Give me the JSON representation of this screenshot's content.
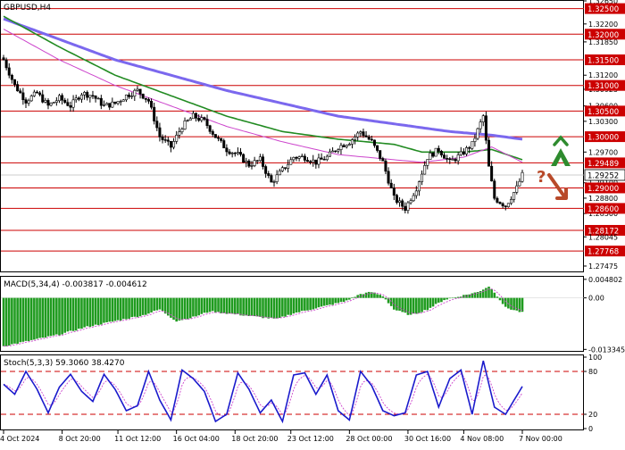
{
  "chart_data": [
    {
      "type": "candlestick",
      "title": "GBPUSD,H4",
      "y_axis_ticks": [
        "1.32650",
        "1.32500",
        "1.32200",
        "1.31850",
        "1.31500",
        "1.31200",
        "1.30925",
        "1.30600",
        "1.30300",
        "1.30000",
        "1.29700",
        "1.29252",
        "1.29100",
        "1.28800",
        "1.28500",
        "1.28172",
        "1.28045",
        "1.27768",
        "1.27475"
      ],
      "ylim": [
        1.2737,
        1.3265
      ],
      "horizontal_levels": [
        {
          "value": 1.325,
          "label": "1.32500"
        },
        {
          "value": 1.32,
          "label": "1.32000"
        },
        {
          "value": 1.315,
          "label": "1.31500"
        },
        {
          "value": 1.31,
          "label": "1.31000"
        },
        {
          "value": 1.305,
          "label": "1.30500"
        },
        {
          "value": 1.3,
          "label": "1.30000"
        },
        {
          "value": 1.29489,
          "label": "1.29489"
        },
        {
          "value": 1.29,
          "label": "1.29000"
        },
        {
          "value": 1.286,
          "label": "1.28600"
        },
        {
          "value": 1.28172,
          "label": "1.28172"
        },
        {
          "value": 1.27768,
          "label": "1.27768"
        }
      ],
      "current_price": {
        "value": 1.29252,
        "label": "1.29252"
      },
      "x_axis_ticks": [
        "4 Oct 2024",
        "8 Oct 20:00",
        "11 Oct 12:00",
        "16 Oct 04:00",
        "18 Oct 20:00",
        "23 Oct 12:00",
        "28 Oct 00:00",
        "30 Oct 16:00",
        "4 Nov 08:00",
        "7 Nov 00:00"
      ],
      "close_waypoints": [
        [
          0,
          1.315
        ],
        [
          4,
          1.31
        ],
        [
          8,
          1.307
        ],
        [
          12,
          1.3085
        ],
        [
          16,
          1.306
        ],
        [
          20,
          1.3075
        ],
        [
          24,
          1.306
        ],
        [
          28,
          1.3085
        ],
        [
          32,
          1.308
        ],
        [
          36,
          1.306
        ],
        [
          40,
          1.3065
        ],
        [
          44,
          1.308
        ],
        [
          48,
          1.309
        ],
        [
          52,
          1.307
        ],
        [
          56,
          1.3
        ],
        [
          60,
          1.298
        ],
        [
          64,
          1.302
        ],
        [
          68,
          1.304
        ],
        [
          72,
          1.303
        ],
        [
          76,
          1.3
        ],
        [
          80,
          1.2975
        ],
        [
          84,
          1.2965
        ],
        [
          88,
          1.2945
        ],
        [
          92,
          1.2955
        ],
        [
          96,
          1.291
        ],
        [
          100,
          1.2935
        ],
        [
          104,
          1.296
        ],
        [
          108,
          1.296
        ],
        [
          112,
          1.295
        ],
        [
          116,
          1.296
        ],
        [
          120,
          1.298
        ],
        [
          124,
          1.299
        ],
        [
          128,
          1.301
        ],
        [
          132,
          1.299
        ],
        [
          136,
          1.295
        ],
        [
          140,
          1.288
        ],
        [
          144,
          1.286
        ],
        [
          148,
          1.29
        ],
        [
          152,
          1.296
        ],
        [
          156,
          1.2975
        ],
        [
          160,
          1.295
        ],
        [
          164,
          1.2965
        ],
        [
          168,
          1.2985
        ],
        [
          172,
          1.304
        ],
        [
          174,
          1.294
        ],
        [
          176,
          1.288
        ],
        [
          180,
          1.2865
        ],
        [
          184,
          1.29
        ],
        [
          186,
          1.29252
        ]
      ],
      "ma_purple_waypoints": [
        [
          0,
          1.323
        ],
        [
          20,
          1.319
        ],
        [
          40,
          1.315
        ],
        [
          60,
          1.312
        ],
        [
          80,
          1.309
        ],
        [
          100,
          1.3065
        ],
        [
          120,
          1.304
        ],
        [
          140,
          1.3025
        ],
        [
          160,
          1.301
        ],
        [
          175,
          1.3003
        ],
        [
          186,
          1.2995
        ]
      ],
      "ma_green_waypoints": [
        [
          0,
          1.3235
        ],
        [
          20,
          1.3175
        ],
        [
          40,
          1.312
        ],
        [
          60,
          1.308
        ],
        [
          80,
          1.304
        ],
        [
          100,
          1.301
        ],
        [
          120,
          1.2995
        ],
        [
          140,
          1.2985
        ],
        [
          150,
          1.297
        ],
        [
          165,
          1.297
        ],
        [
          175,
          1.2975
        ],
        [
          186,
          1.2955
        ]
      ],
      "ma_magenta_waypoints": [
        [
          0,
          1.321
        ],
        [
          20,
          1.315
        ],
        [
          40,
          1.31
        ],
        [
          60,
          1.306
        ],
        [
          80,
          1.302
        ],
        [
          100,
          1.299
        ],
        [
          120,
          1.2965
        ],
        [
          140,
          1.2955
        ],
        [
          150,
          1.295
        ],
        [
          165,
          1.296
        ],
        [
          175,
          1.298
        ],
        [
          186,
          1.295
        ]
      ],
      "annotations": {
        "question_mark": "?"
      },
      "colors": {
        "bull": "#000000",
        "bear": "#000000",
        "level": "#cc0000",
        "ma_purple": "#7b68ee",
        "ma_green": "#228b22",
        "ma_magenta": "#cc44cc",
        "up_arrow": "#2e8b2e",
        "down_arrow": "#b84a2a"
      }
    },
    {
      "type": "bar",
      "title": "MACD(5,34,4) -0.003817 -0.004612",
      "y_axis_ticks": [
        "0.004802",
        "0.00",
        "-0.013345"
      ],
      "ylim": [
        -0.0135,
        0.005
      ],
      "value_waypoints": [
        [
          0,
          -0.0125
        ],
        [
          10,
          -0.011
        ],
        [
          20,
          -0.0095
        ],
        [
          30,
          -0.0075
        ],
        [
          40,
          -0.006
        ],
        [
          50,
          -0.0045
        ],
        [
          56,
          -0.003
        ],
        [
          62,
          -0.006
        ],
        [
          68,
          -0.005
        ],
        [
          74,
          -0.0035
        ],
        [
          80,
          -0.004
        ],
        [
          86,
          -0.0045
        ],
        [
          92,
          -0.005
        ],
        [
          98,
          -0.0055
        ],
        [
          104,
          -0.004
        ],
        [
          110,
          -0.003
        ],
        [
          116,
          -0.002
        ],
        [
          122,
          -0.001
        ],
        [
          128,
          0.001
        ],
        [
          132,
          0.0015
        ],
        [
          136,
          0.0005
        ],
        [
          140,
          -0.003
        ],
        [
          146,
          -0.0045
        ],
        [
          152,
          -0.003
        ],
        [
          158,
          -0.0005
        ],
        [
          164,
          0.0005
        ],
        [
          170,
          0.0015
        ],
        [
          174,
          0.003
        ],
        [
          176,
          0.0015
        ],
        [
          180,
          -0.0025
        ],
        [
          186,
          -0.0038
        ]
      ],
      "colors": {
        "bars": "#1f9b1f",
        "signal": "#cc44cc"
      }
    },
    {
      "type": "line",
      "title": "Stoch(5,3,3) 59.3060 38.4270",
      "y_axis_ticks": [
        "100",
        "80",
        "20",
        "0"
      ],
      "ylim": [
        0,
        100
      ],
      "levels": [
        80,
        20
      ],
      "k_waypoints": [
        [
          0,
          62
        ],
        [
          4,
          48
        ],
        [
          8,
          80
        ],
        [
          12,
          55
        ],
        [
          16,
          22
        ],
        [
          20,
          58
        ],
        [
          24,
          76
        ],
        [
          28,
          52
        ],
        [
          32,
          38
        ],
        [
          36,
          76
        ],
        [
          40,
          55
        ],
        [
          44,
          25
        ],
        [
          48,
          32
        ],
        [
          52,
          80
        ],
        [
          56,
          40
        ],
        [
          60,
          12
        ],
        [
          64,
          82
        ],
        [
          68,
          70
        ],
        [
          72,
          52
        ],
        [
          76,
          10
        ],
        [
          80,
          20
        ],
        [
          84,
          78
        ],
        [
          88,
          55
        ],
        [
          92,
          22
        ],
        [
          96,
          40
        ],
        [
          100,
          10
        ],
        [
          104,
          75
        ],
        [
          108,
          78
        ],
        [
          112,
          48
        ],
        [
          116,
          75
        ],
        [
          120,
          25
        ],
        [
          124,
          12
        ],
        [
          128,
          80
        ],
        [
          132,
          60
        ],
        [
          136,
          25
        ],
        [
          140,
          18
        ],
        [
          144,
          22
        ],
        [
          148,
          75
        ],
        [
          152,
          80
        ],
        [
          156,
          30
        ],
        [
          160,
          70
        ],
        [
          164,
          82
        ],
        [
          168,
          20
        ],
        [
          172,
          95
        ],
        [
          176,
          30
        ],
        [
          180,
          20
        ],
        [
          186,
          59
        ]
      ],
      "colors": {
        "k": "#1a1acc",
        "d": "#cc44cc",
        "levels": "#cc0000"
      }
    }
  ]
}
